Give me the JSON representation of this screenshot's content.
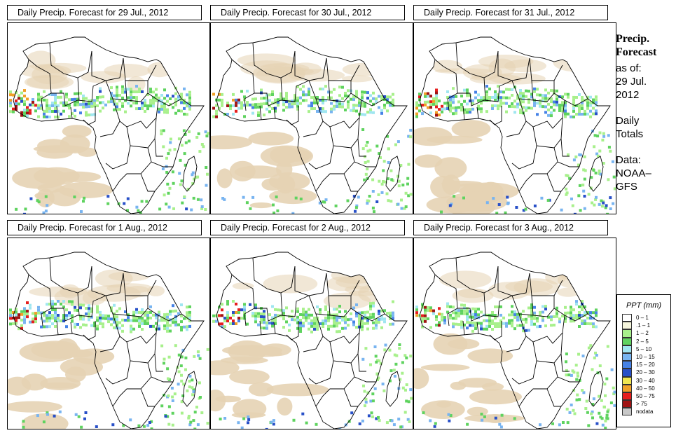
{
  "panels": [
    {
      "title": "Daily Precip. Forecast for  29 Jul., 2012",
      "seed": 11
    },
    {
      "title": "Daily Precip. Forecast for  30 Jul., 2012",
      "seed": 23
    },
    {
      "title": "Daily Precip. Forecast for  31 Jul., 2012",
      "seed": 37
    },
    {
      "title": "Daily Precip. Forecast for  1 Aug., 2012",
      "seed": 41
    },
    {
      "title": "Daily Precip. Forecast for  2 Aug., 2012",
      "seed": 53
    },
    {
      "title": "Daily Precip. Forecast for  3 Aug., 2012",
      "seed": 67
    }
  ],
  "side": {
    "heading_line1": "Precip.",
    "heading_line2": "Forecast",
    "asof_label": "as of:",
    "asof_date_line1": "29 Jul.",
    "asof_date_line2": "2012",
    "totals_line1": "Daily",
    "totals_line2": "Totals",
    "data_label": "Data:",
    "data_source_line1": "NOAA–",
    "data_source_line2": "GFS"
  },
  "legend": {
    "title": "PPT (mm)",
    "classes": [
      {
        "label": "0 – 1",
        "color": "#ffffff"
      },
      {
        "label": ".1 – 1",
        "color": "#f5f5dc"
      },
      {
        "label": "1 – 2",
        "color": "#a8f08c"
      },
      {
        "label": "2 – 5",
        "color": "#5fd35f"
      },
      {
        "label": "5 – 10",
        "color": "#a0e6f0"
      },
      {
        "label": "10 – 15",
        "color": "#78b4f0"
      },
      {
        "label": "15 – 20",
        "color": "#4682e6"
      },
      {
        "label": "20 – 30",
        "color": "#2850c8"
      },
      {
        "label": "30 – 40",
        "color": "#f0e650"
      },
      {
        "label": "40 – 50",
        "color": "#f0a028"
      },
      {
        "label": "50 – 75",
        "color": "#e61e1e"
      },
      {
        "label": "> 75",
        "color": "#a01414"
      },
      {
        "label": "nodata",
        "color": "#c8c8c8"
      }
    ]
  },
  "map_colors": {
    "dry_desert": "#e6d3b4",
    "border": "#000000"
  }
}
